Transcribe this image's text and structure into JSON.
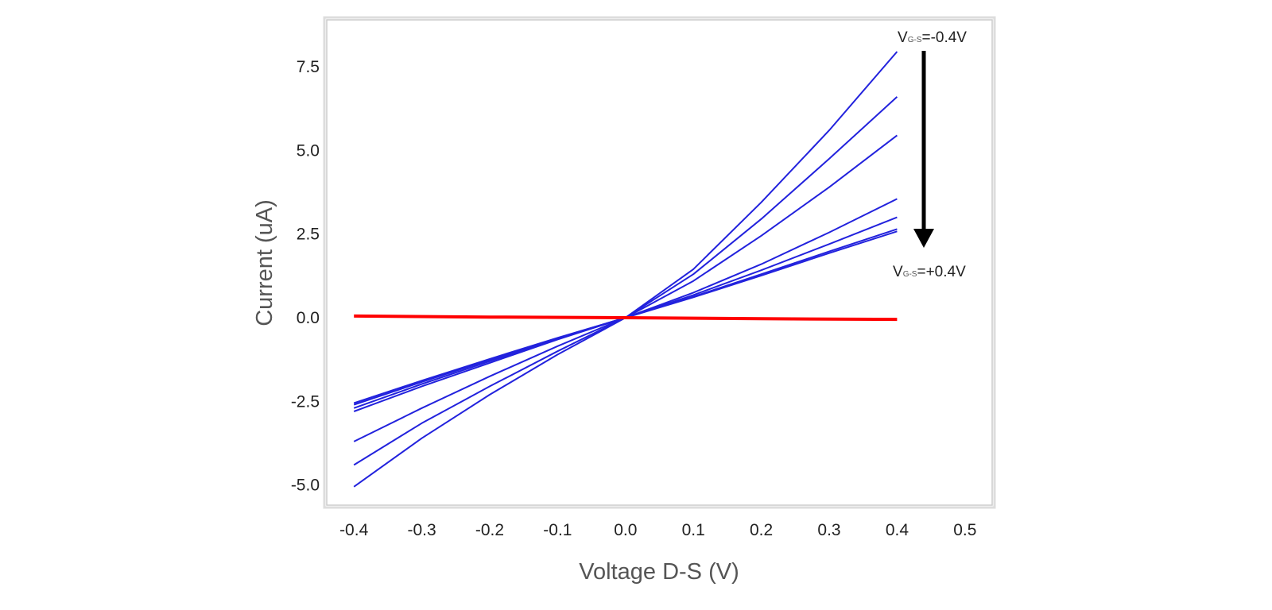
{
  "chart_data": {
    "type": "line",
    "xlabel": "Voltage D-S (V)",
    "ylabel": "Current (uA)",
    "xlim": [
      -0.44,
      0.54
    ],
    "ylim": [
      -5.6,
      8.9
    ],
    "xticks": [
      -0.4,
      -0.3,
      -0.2,
      -0.1,
      0.0,
      0.1,
      0.2,
      0.3,
      0.4,
      0.5
    ],
    "xtick_labels": [
      "-0.4",
      "-0.3",
      "-0.2",
      "-0.1",
      "0.0",
      "0.1",
      "0.2",
      "0.3",
      "0.4",
      "0.5"
    ],
    "yticks": [
      7.5,
      5.0,
      2.5,
      0.0,
      -2.5,
      -5.0
    ],
    "ytick_labels": [
      "7.5",
      "5.0",
      "2.5",
      "0.0",
      "-2.5",
      "-5.0"
    ],
    "grid": false,
    "colors": {
      "blue": "#2222dd",
      "red": "#ff0000",
      "arrow": "#000000",
      "frame": "#cccccc"
    },
    "series": [
      {
        "color": "#2222dd",
        "x": [
          -0.4,
          -0.3,
          -0.2,
          -0.1,
          0.0,
          0.1,
          0.2,
          0.3,
          0.4
        ],
        "y": [
          -5.05,
          -3.6,
          -2.3,
          -1.1,
          0.0,
          1.45,
          3.45,
          5.6,
          7.95
        ]
      },
      {
        "color": "#2222dd",
        "x": [
          -0.4,
          -0.3,
          -0.2,
          -0.1,
          0.0,
          0.1,
          0.2,
          0.3,
          0.4
        ],
        "y": [
          -4.4,
          -3.15,
          -2.05,
          -1.0,
          0.0,
          1.3,
          2.95,
          4.75,
          6.6
        ]
      },
      {
        "color": "#2222dd",
        "x": [
          -0.4,
          -0.3,
          -0.2,
          -0.1,
          0.0,
          0.1,
          0.2,
          0.3,
          0.4
        ],
        "y": [
          -3.7,
          -2.7,
          -1.75,
          -0.85,
          0.0,
          1.1,
          2.45,
          3.9,
          5.45
        ]
      },
      {
        "color": "#2222dd",
        "x": [
          -0.4,
          -0.3,
          -0.2,
          -0.1,
          0.0,
          0.1,
          0.2,
          0.3,
          0.4
        ],
        "y": [
          -2.8,
          -2.05,
          -1.35,
          -0.65,
          0.0,
          0.75,
          1.6,
          2.55,
          3.55
        ]
      },
      {
        "color": "#2222dd",
        "x": [
          -0.4,
          -0.3,
          -0.2,
          -0.1,
          0.0,
          0.1,
          0.2,
          0.3,
          0.4
        ],
        "y": [
          -2.7,
          -1.98,
          -1.3,
          -0.63,
          0.0,
          0.68,
          1.42,
          2.2,
          3.0
        ]
      },
      {
        "color": "#2222dd",
        "x": [
          -0.4,
          -0.3,
          -0.2,
          -0.1,
          0.0,
          0.1,
          0.2,
          0.3,
          0.4
        ],
        "y": [
          -2.6,
          -1.92,
          -1.26,
          -0.61,
          0.0,
          0.63,
          1.3,
          1.98,
          2.65
        ]
      },
      {
        "color": "#2222dd",
        "x": [
          -0.4,
          -0.3,
          -0.2,
          -0.1,
          0.0,
          0.1,
          0.2,
          0.3,
          0.4
        ],
        "y": [
          -2.55,
          -1.88,
          -1.23,
          -0.6,
          0.0,
          0.61,
          1.26,
          1.93,
          2.58
        ]
      },
      {
        "color": "#ff0000",
        "x": [
          -0.4,
          -0.2,
          0.0,
          0.2,
          0.4
        ],
        "y": [
          0.05,
          0.02,
          0.0,
          -0.03,
          -0.05
        ]
      }
    ],
    "annotations": [
      {
        "main": "V",
        "sub": "G-S",
        "value": "=-0.4V",
        "x": 0.4,
        "y": 8.2
      },
      {
        "main": "V",
        "sub": "G-S",
        "value": "=+0.4V",
        "x": 0.4,
        "y": 1.35
      }
    ]
  }
}
